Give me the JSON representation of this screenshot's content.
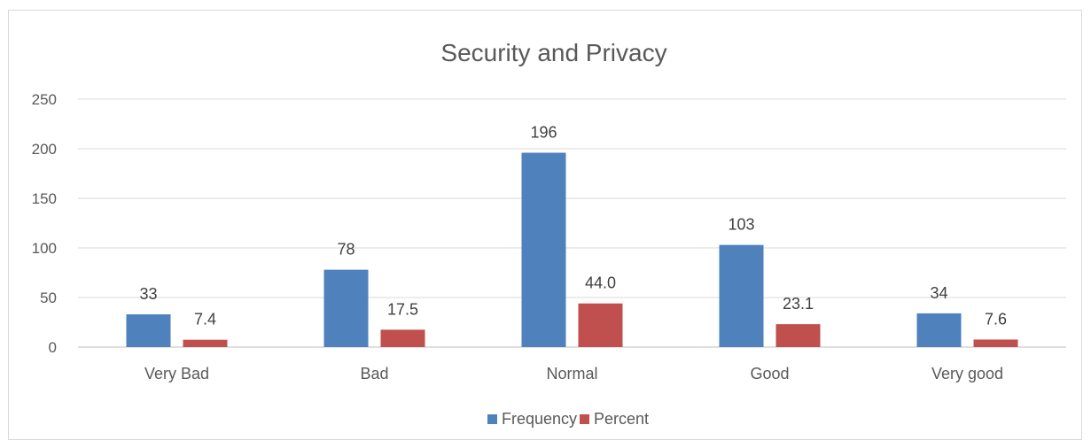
{
  "chart_data": {
    "type": "bar",
    "title": "Security and Privacy",
    "categories": [
      "Very Bad",
      "Bad",
      "Normal",
      "Good",
      "Very good"
    ],
    "series": [
      {
        "name": "Frequency",
        "color": "#4f81bd",
        "values": [
          33,
          78,
          196,
          103,
          34
        ],
        "labels": [
          "33",
          "78",
          "196",
          "103",
          "34"
        ]
      },
      {
        "name": "Percent",
        "color": "#c0504d",
        "values": [
          7.4,
          17.5,
          44.0,
          23.1,
          7.6
        ],
        "labels": [
          "7.4",
          "17.5",
          "44.0",
          "23.1",
          "7.6"
        ]
      }
    ],
    "ylim": [
      0,
      250
    ],
    "yticks": [
      0,
      50,
      100,
      150,
      200,
      250
    ],
    "grid": true,
    "legend_position": "bottom"
  }
}
